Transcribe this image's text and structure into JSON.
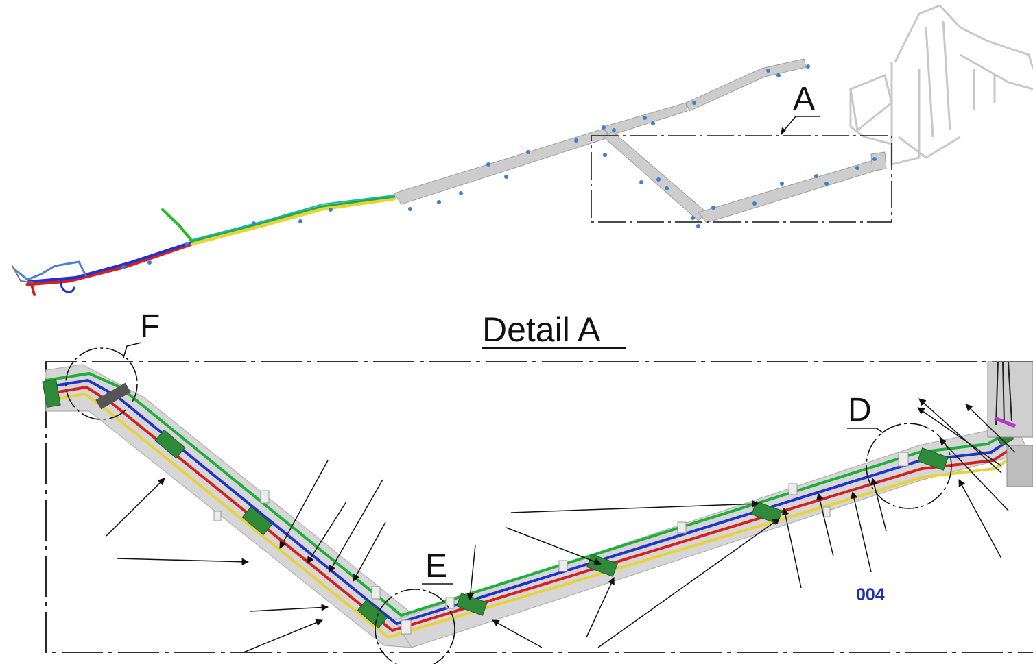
{
  "labels": {
    "detail_ref": "A",
    "detail_title": "Detail A",
    "detail_f": "F",
    "detail_d": "D",
    "detail_e": "E",
    "part_code": "004"
  },
  "colors": {
    "tray": "#c9c9c9",
    "clip": "#3a7fd0",
    "wire_green": "#1fae3a",
    "wire_blue": "#2233cc",
    "wire_red": "#d42020",
    "wire_yellow": "#e8d23a",
    "clamp": "#2f8a3a",
    "leader": "#111111",
    "part_code": "#1f2fb0"
  }
}
